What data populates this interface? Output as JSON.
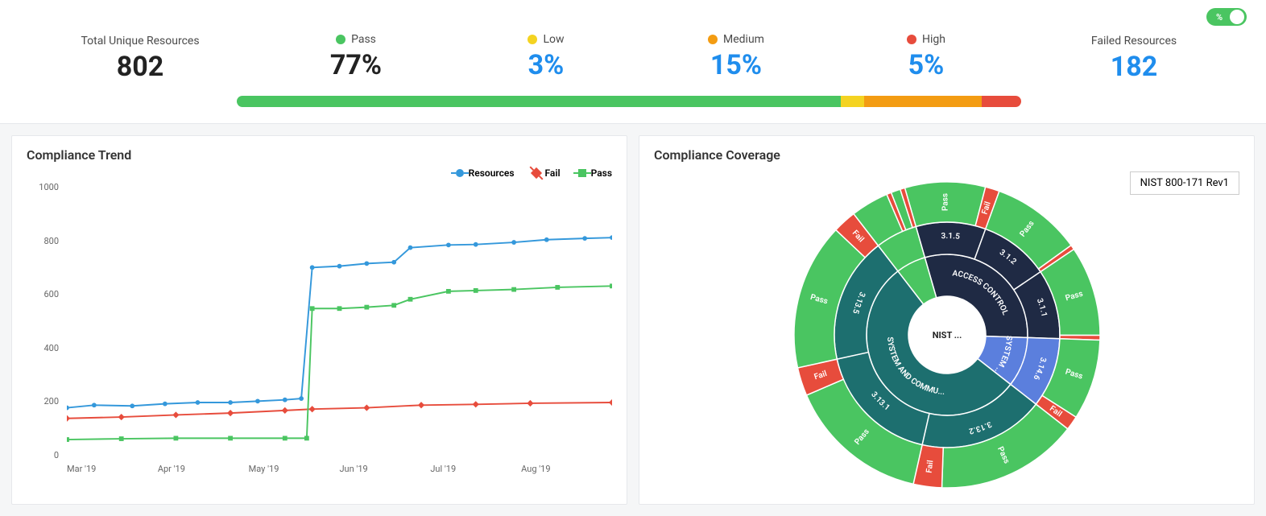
{
  "toggle": {
    "label": "%"
  },
  "stats": {
    "total": {
      "label": "Total Unique Resources",
      "value": "802"
    },
    "pass": {
      "label": "Pass",
      "value": "77%",
      "color": "#4ac561"
    },
    "low": {
      "label": "Low",
      "value": "3%",
      "color": "#f4d321"
    },
    "medium": {
      "label": "Medium",
      "value": "15%",
      "color": "#f39c12"
    },
    "high": {
      "label": "High",
      "value": "5%",
      "color": "#e74c3c"
    },
    "failed": {
      "label": "Failed Resources",
      "value": "182"
    }
  },
  "bar": {
    "segments": [
      {
        "pct": 77,
        "color": "#4ac561"
      },
      {
        "pct": 3,
        "color": "#f4d321"
      },
      {
        "pct": 15,
        "color": "#f39c12"
      },
      {
        "pct": 5,
        "color": "#e74c3c"
      }
    ]
  },
  "trend": {
    "title": "Compliance Trend",
    "legend": {
      "resources": {
        "label": "Resources",
        "color": "#3498db"
      },
      "fail": {
        "label": "Fail",
        "color": "#e74c3c"
      },
      "pass": {
        "label": "Pass",
        "color": "#4ac561"
      }
    },
    "ylim": [
      0,
      1000
    ],
    "ytick_step": 200,
    "x_labels": [
      "Mar '19",
      "Apr '19",
      "May '19",
      "Jun '19",
      "Jul '19",
      "Aug '19"
    ],
    "series": {
      "resources": {
        "color": "#3498db",
        "points": [
          [
            0,
            165
          ],
          [
            0.05,
            175
          ],
          [
            0.12,
            172
          ],
          [
            0.18,
            180
          ],
          [
            0.24,
            185
          ],
          [
            0.3,
            185
          ],
          [
            0.35,
            190
          ],
          [
            0.4,
            195
          ],
          [
            0.43,
            200
          ],
          [
            0.45,
            695
          ],
          [
            0.5,
            700
          ],
          [
            0.55,
            710
          ],
          [
            0.6,
            715
          ],
          [
            0.63,
            770
          ],
          [
            0.7,
            780
          ],
          [
            0.75,
            782
          ],
          [
            0.82,
            790
          ],
          [
            0.88,
            800
          ],
          [
            0.95,
            805
          ],
          [
            1.0,
            808
          ]
        ]
      },
      "fail": {
        "color": "#e74c3c",
        "points": [
          [
            0,
            125
          ],
          [
            0.1,
            130
          ],
          [
            0.2,
            138
          ],
          [
            0.3,
            145
          ],
          [
            0.4,
            155
          ],
          [
            0.45,
            160
          ],
          [
            0.55,
            165
          ],
          [
            0.65,
            175
          ],
          [
            0.75,
            178
          ],
          [
            0.85,
            182
          ],
          [
            1.0,
            185
          ]
        ]
      },
      "pass": {
        "color": "#4ac561",
        "points": [
          [
            0,
            45
          ],
          [
            0.1,
            48
          ],
          [
            0.2,
            50
          ],
          [
            0.3,
            50
          ],
          [
            0.4,
            50
          ],
          [
            0.44,
            50
          ],
          [
            0.45,
            540
          ],
          [
            0.5,
            540
          ],
          [
            0.55,
            545
          ],
          [
            0.6,
            552
          ],
          [
            0.63,
            575
          ],
          [
            0.7,
            605
          ],
          [
            0.75,
            608
          ],
          [
            0.82,
            612
          ],
          [
            0.9,
            620
          ],
          [
            1.0,
            625
          ]
        ]
      }
    },
    "line_width": 2,
    "background": "#ffffff"
  },
  "coverage": {
    "title": "Compliance Coverage",
    "framework": "NIST 800-171 Rev1",
    "center_label": "NIST ...",
    "colors": {
      "pass": "#4ac561",
      "fail": "#e74c3c",
      "access_control": "#1f2a44",
      "sys_commu": "#1d6f6f",
      "system": "#5b7fdd",
      "thin_green": "#4ac561",
      "thin_red": "#e74c3c"
    },
    "ring1": [
      {
        "label": "ACCESS CONTROL",
        "frac": 0.3,
        "color": "#1f2a44"
      },
      {
        "label": "SYSTEM ...",
        "frac": 0.1,
        "color": "#5b7fdd"
      },
      {
        "label": "SYSTEM AND COMMU...",
        "frac": 0.54,
        "color": "#1d6f6f"
      },
      {
        "label": "",
        "frac": 0.06,
        "color": "#4ac561"
      }
    ],
    "ring2": [
      {
        "label": "3.1.5",
        "frac": 0.1,
        "parent": 0
      },
      {
        "label": "3.1.2",
        "frac": 0.1,
        "parent": 0
      },
      {
        "label": "3.1.1",
        "frac": 0.1,
        "parent": 0
      },
      {
        "label": "3.14.6",
        "frac": 0.1,
        "parent": 1
      },
      {
        "label": "3.13.2",
        "frac": 0.18,
        "parent": 2
      },
      {
        "label": "3.13.1",
        "frac": 0.18,
        "parent": 2
      },
      {
        "label": "3.13.5",
        "frac": 0.18,
        "parent": 2
      },
      {
        "label": "",
        "frac": 0.06,
        "parent": 3
      }
    ],
    "ring3": [
      {
        "label": "Pass",
        "frac": 0.085,
        "color": "#4ac561"
      },
      {
        "label": "Fail",
        "frac": 0.015,
        "color": "#e74c3c"
      },
      {
        "label": "Pass",
        "frac": 0.095,
        "color": "#4ac561"
      },
      {
        "label": "",
        "frac": 0.005,
        "color": "#e74c3c"
      },
      {
        "label": "Pass",
        "frac": 0.095,
        "color": "#4ac561"
      },
      {
        "label": "",
        "frac": 0.005,
        "color": "#e74c3c"
      },
      {
        "label": "Pass",
        "frac": 0.085,
        "color": "#4ac561"
      },
      {
        "label": "Fail",
        "frac": 0.015,
        "color": "#e74c3c"
      },
      {
        "label": "Pass",
        "frac": 0.15,
        "color": "#4ac561"
      },
      {
        "label": "Fail",
        "frac": 0.03,
        "color": "#e74c3c"
      },
      {
        "label": "Pass",
        "frac": 0.15,
        "color": "#4ac561"
      },
      {
        "label": "Fail",
        "frac": 0.03,
        "color": "#e74c3c"
      },
      {
        "label": "Pass",
        "frac": 0.155,
        "color": "#4ac561"
      },
      {
        "label": "Fail",
        "frac": 0.025,
        "color": "#e74c3c"
      },
      {
        "label": "",
        "frac": 0.04,
        "color": "#4ac561"
      },
      {
        "label": "",
        "frac": 0.005,
        "color": "#e74c3c"
      },
      {
        "label": "",
        "frac": 0.01,
        "color": "#4ac561"
      },
      {
        "label": "",
        "frac": 0.005,
        "color": "#e74c3c"
      }
    ]
  }
}
